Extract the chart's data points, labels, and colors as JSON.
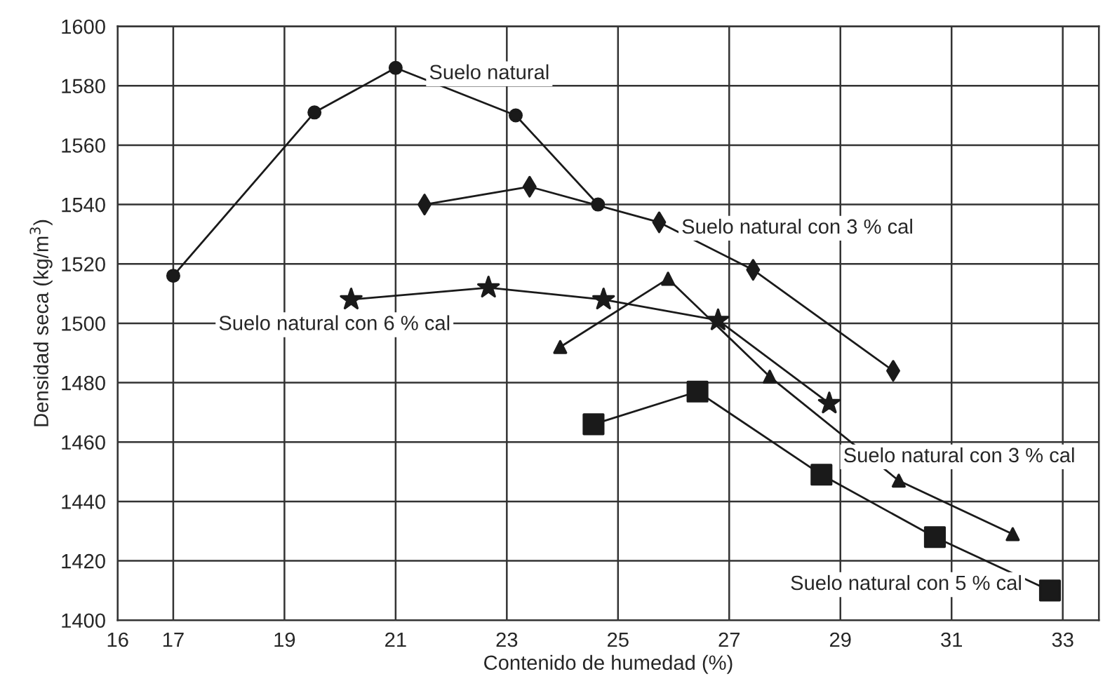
{
  "chart_data": {
    "type": "line",
    "xlabel": "Contenido de humedad (%)",
    "ylabel": "Densidad seca (kg/m$^{3}$)",
    "xlim": [
      16,
      33.65
    ],
    "xticks": [
      16,
      17,
      19,
      21,
      23,
      25,
      27,
      29,
      31,
      33
    ],
    "ylim": [
      1400,
      1600
    ],
    "yticks": [
      1400,
      1420,
      1440,
      1460,
      1480,
      1500,
      1520,
      1540,
      1560,
      1580,
      1600
    ],
    "grid": true,
    "legend": false,
    "line_style": "solid",
    "series": [
      {
        "name": "Suelo natural",
        "color": "#1a1a1a",
        "marker": "circle",
        "x": [
          17,
          19.54,
          21.0,
          23.16,
          24.64
        ],
        "values": [
          1516,
          1571,
          1586,
          1570,
          1540
        ]
      },
      {
        "name": "Suelo natural con 3 % cal",
        "color": "#1a1a1a",
        "marker": "diamond",
        "x": [
          21.52,
          23.41,
          25.74,
          27.43,
          29.95
        ],
        "values": [
          1540,
          1546,
          1534,
          1518,
          1484
        ]
      },
      {
        "name": "Suelo natural con 6 % cal",
        "color": "#1a1a1a",
        "marker": "star",
        "x": [
          20.2,
          22.67,
          24.74,
          26.8,
          28.8
        ],
        "values": [
          1508,
          1512,
          1508,
          1501,
          1473
        ]
      },
      {
        "name": "Suelo natural con 3 % cal",
        "color": "#1a1a1a",
        "marker": "triangle",
        "x": [
          23.96,
          25.9,
          27.73,
          30.05,
          32.1
        ],
        "values": [
          1492,
          1515,
          1482,
          1447,
          1429
        ]
      },
      {
        "name": "Suelo natural con 5 % cal",
        "color": "#1a1a1a",
        "marker": "square",
        "x": [
          24.56,
          26.43,
          28.66,
          30.7,
          32.77
        ],
        "values": [
          1466,
          1477,
          1449,
          1428,
          1410
        ]
      }
    ]
  }
}
